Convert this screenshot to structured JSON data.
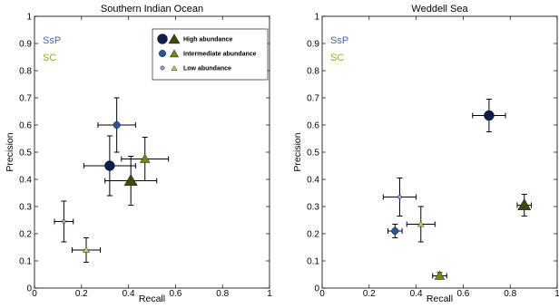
{
  "chart_data": [
    {
      "type": "scatter",
      "title": "Southern Indian Ocean",
      "xlabel": "Recall",
      "ylabel": "Precision",
      "xlim": [
        0,
        1
      ],
      "ylim": [
        0,
        1
      ],
      "xticks": [
        "0",
        "0.2",
        "0.4",
        "0.6",
        "0.8",
        "1"
      ],
      "yticks": [
        "0",
        "0.1",
        "0.2",
        "0.3",
        "0.4",
        "0.5",
        "0.6",
        "0.7",
        "0.8",
        "0.9",
        "1"
      ],
      "grid": false,
      "group_labels": [
        {
          "text": "SsP",
          "color": "#4169b0"
        },
        {
          "text": "SC",
          "color": "#8fb020"
        }
      ],
      "legend": {
        "placement": "top-right",
        "entries": [
          "High abundance",
          "Intermediate abundance",
          "Low abundance"
        ]
      },
      "series": [
        {
          "group": "SsP",
          "abundance": "high",
          "marker": "circle",
          "color": "#0e1d4a",
          "x": 0.32,
          "y": 0.45,
          "xerr": 0.11,
          "yerr": 0.11
        },
        {
          "group": "SC",
          "abundance": "high",
          "marker": "triangle",
          "color": "#3b4a10",
          "x": 0.41,
          "y": 0.395,
          "xerr": 0.11,
          "yerr": 0.09
        },
        {
          "group": "SsP",
          "abundance": "intermediate",
          "marker": "circle",
          "color": "#2c5496",
          "x": 0.35,
          "y": 0.6,
          "xerr": 0.08,
          "yerr": 0.1
        },
        {
          "group": "SC",
          "abundance": "intermediate",
          "marker": "triangle",
          "color": "#6d8a18",
          "x": 0.47,
          "y": 0.475,
          "xerr": 0.1,
          "yerr": 0.08
        },
        {
          "group": "SsP",
          "abundance": "low",
          "marker": "circle",
          "color": "#7fa6d8",
          "x": 0.125,
          "y": 0.245,
          "xerr": 0.04,
          "yerr": 0.075
        },
        {
          "group": "SC",
          "abundance": "low",
          "marker": "triangle",
          "color": "#b8cf62",
          "x": 0.22,
          "y": 0.14,
          "xerr": 0.06,
          "yerr": 0.045
        }
      ]
    },
    {
      "type": "scatter",
      "title": "Weddell Sea",
      "xlabel": "Recall",
      "ylabel": "Precision",
      "xlim": [
        0,
        1
      ],
      "ylim": [
        0,
        1
      ],
      "xticks": [
        "0",
        "0.2",
        "0.4",
        "0.6",
        "0.8",
        "1"
      ],
      "yticks": [
        "0",
        "0.1",
        "0.2",
        "0.3",
        "0.4",
        "0.5",
        "0.6",
        "0.7",
        "0.8",
        "0.9",
        "1"
      ],
      "grid": false,
      "group_labels": [
        {
          "text": "SsP",
          "color": "#4169b0"
        },
        {
          "text": "SC",
          "color": "#8fb020"
        }
      ],
      "series": [
        {
          "group": "SsP",
          "abundance": "high",
          "marker": "circle",
          "color": "#0e1d4a",
          "x": 0.71,
          "y": 0.635,
          "xerr": 0.07,
          "yerr": 0.06
        },
        {
          "group": "SC",
          "abundance": "high",
          "marker": "triangle",
          "color": "#3b4a10",
          "x": 0.86,
          "y": 0.305,
          "xerr": 0.03,
          "yerr": 0.04
        },
        {
          "group": "SsP",
          "abundance": "intermediate",
          "marker": "circle",
          "color": "#2c5496",
          "x": 0.31,
          "y": 0.21,
          "xerr": 0.03,
          "yerr": 0.025
        },
        {
          "group": "SC",
          "abundance": "intermediate",
          "marker": "triangle",
          "color": "#6d8a18",
          "x": 0.5,
          "y": 0.045,
          "xerr": 0.03,
          "yerr": 0.012
        },
        {
          "group": "SsP",
          "abundance": "low",
          "marker": "circle",
          "color": "#7fa6d8",
          "x": 0.33,
          "y": 0.335,
          "xerr": 0.07,
          "yerr": 0.07
        },
        {
          "group": "SC",
          "abundance": "low",
          "marker": "triangle",
          "color": "#b8cf62",
          "x": 0.42,
          "y": 0.235,
          "xerr": 0.06,
          "yerr": 0.065
        }
      ]
    }
  ]
}
